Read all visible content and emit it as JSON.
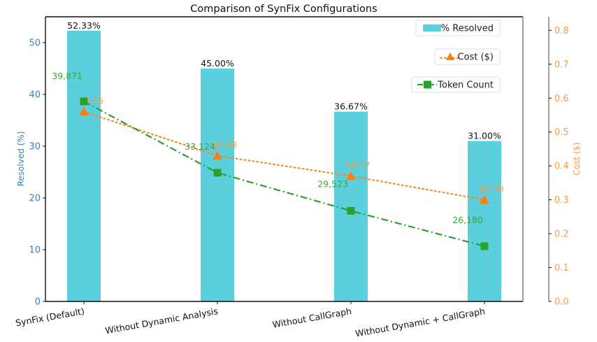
{
  "chart_data": {
    "type": "bar",
    "title": "Comparison of SynFix Configurations",
    "categories": [
      "SynFix (Default)",
      "Without Dynamic Analysis",
      "Without CallGraph",
      "Without Dynamic + CallGraph"
    ],
    "xlabel": "",
    "ylabel": "Resolved (%)",
    "ylabel_right": "Cost ($)",
    "ylim": [
      0,
      55
    ],
    "ylim_right": [
      0,
      0.84
    ],
    "yticks": [
      0,
      10,
      20,
      30,
      40,
      50
    ],
    "yticks_right": [
      0.0,
      0.1,
      0.2,
      0.3,
      0.4,
      0.5,
      0.6,
      0.7,
      0.8
    ],
    "grid": false,
    "legend_position": "top-right",
    "series": [
      {
        "name": "% Resolved",
        "type": "bar",
        "axis": "left",
        "color": "#5bcfdd",
        "values": [
          52.33,
          45.0,
          36.67,
          31.0
        ],
        "labels": [
          "52.33%",
          "45.00%",
          "36.67%",
          "31.00%"
        ]
      },
      {
        "name": "Cost ($)",
        "type": "line",
        "axis": "right",
        "marker": "triangle",
        "linestyle": "dotted",
        "color": "#ff7f0e",
        "values": [
          0.56,
          0.43,
          0.37,
          0.3
        ],
        "labels": [
          "$0.56",
          "$0.43",
          "$0.37",
          "$0.30"
        ]
      },
      {
        "name": "Token Count",
        "type": "line",
        "axis": "hidden",
        "marker": "square",
        "linestyle": "dashdot",
        "color": "#2ca02c",
        "values": [
          39871,
          33124,
          29523,
          26180
        ],
        "labels": [
          "39,871",
          "33,124",
          "29,523",
          "26,180"
        ]
      }
    ]
  }
}
